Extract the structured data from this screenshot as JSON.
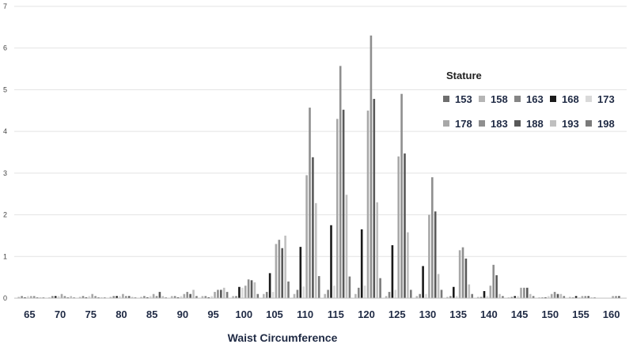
{
  "chart_data": {
    "type": "bar",
    "title": "",
    "xlabel": "Waist Circumference",
    "ylabel": "",
    "ylim": [
      0,
      7
    ],
    "yticks": [
      0,
      1,
      2,
      3,
      4,
      5,
      6,
      7
    ],
    "grid": true,
    "legend_title": "Stature",
    "legend_position": "right",
    "categories": [
      "65",
      "70",
      "75",
      "80",
      "85",
      "90",
      "95",
      "100",
      "105",
      "110",
      "115",
      "120",
      "125",
      "130",
      "135",
      "140",
      "145",
      "150",
      "155",
      "160"
    ],
    "series": [
      {
        "name": "153",
        "color": "#6e6e6e",
        "values": [
          0,
          0,
          0,
          0,
          0,
          0,
          0,
          0,
          0,
          0,
          0,
          0,
          0,
          0,
          0,
          0,
          0,
          0,
          0,
          0
        ]
      },
      {
        "name": "158",
        "color": "#b5b5b5",
        "values": [
          0.03,
          0.02,
          0.03,
          0.03,
          0.03,
          0.05,
          0.05,
          0.05,
          0.1,
          0.1,
          0.1,
          0.1,
          0.05,
          0.05,
          0.03,
          0.03,
          0.02,
          0.02,
          0.03,
          0
        ]
      },
      {
        "name": "163",
        "color": "#858585",
        "values": [
          0.05,
          0.05,
          0.05,
          0.05,
          0.05,
          0.05,
          0.05,
          0.05,
          0.15,
          0.2,
          0.2,
          0.25,
          0.15,
          0.1,
          0.05,
          0.03,
          0.03,
          0.02,
          0.02,
          0
        ]
      },
      {
        "name": "168",
        "color": "#1a1a1a",
        "values": [
          0.02,
          0.05,
          0.02,
          0.05,
          0.02,
          0.02,
          0.02,
          0.27,
          0.6,
          1.23,
          1.75,
          1.65,
          1.27,
          0.77,
          0.27,
          0.17,
          0.05,
          0.02,
          0.05,
          0
        ]
      },
      {
        "name": "173",
        "color": "#d9d9d9",
        "values": [
          0.05,
          0.05,
          0.05,
          0.05,
          0.05,
          0.05,
          0.05,
          0.25,
          0.15,
          0.28,
          0.3,
          0.3,
          0.2,
          0.1,
          0.05,
          0.05,
          0.05,
          0.05,
          0.02,
          0
        ]
      },
      {
        "name": "178",
        "color": "#a8a8a8",
        "values": [
          0.05,
          0.1,
          0.1,
          0.1,
          0.1,
          0.1,
          0.15,
          0.3,
          1.3,
          2.95,
          4.3,
          4.5,
          3.4,
          2.0,
          1.15,
          0.3,
          0.25,
          0.1,
          0.05,
          0.05
        ]
      },
      {
        "name": "183",
        "color": "#8f8f8f",
        "values": [
          0.05,
          0.05,
          0.05,
          0.05,
          0.05,
          0.15,
          0.2,
          0.45,
          1.4,
          4.57,
          5.57,
          6.3,
          4.9,
          2.9,
          1.22,
          0.8,
          0.25,
          0.15,
          0.05,
          0.05
        ]
      },
      {
        "name": "188",
        "color": "#595959",
        "values": [
          0.02,
          0.02,
          0.02,
          0.05,
          0.15,
          0.1,
          0.2,
          0.43,
          1.2,
          3.38,
          4.52,
          4.78,
          3.47,
          2.08,
          0.95,
          0.55,
          0.25,
          0.1,
          0.05,
          0.05
        ]
      },
      {
        "name": "193",
        "color": "#c0c0c0",
        "values": [
          0.02,
          0.05,
          0.02,
          0.03,
          0.05,
          0.2,
          0.25,
          0.38,
          1.5,
          2.28,
          2.48,
          2.3,
          1.58,
          0.58,
          0.33,
          0.1,
          0.1,
          0.1,
          0.02,
          0
        ]
      },
      {
        "name": "198",
        "color": "#7a7a7a",
        "values": [
          0.02,
          0.02,
          0.02,
          0.02,
          0.02,
          0.05,
          0.15,
          0.1,
          0.4,
          0.53,
          0.52,
          0.48,
          0.2,
          0.2,
          0.1,
          0.05,
          0.05,
          0.05,
          0.02,
          0
        ]
      }
    ]
  }
}
